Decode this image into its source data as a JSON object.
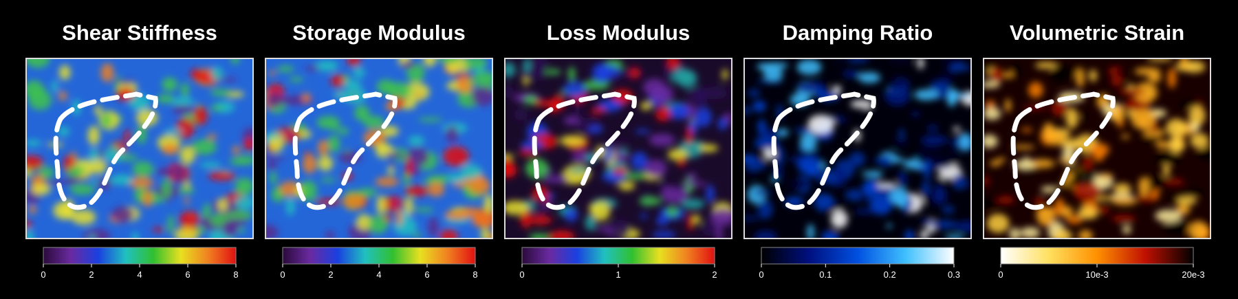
{
  "panels": [
    {
      "title": "Shear Stiffness",
      "colorbar": {
        "lim": [
          0,
          8
        ],
        "ticks": [
          0,
          2,
          4,
          6,
          8
        ],
        "colors": [
          "#2a0a3a",
          "#6a2aa0",
          "#1a40e0",
          "#20c0c0",
          "#30c030",
          "#e8e020",
          "#f08020",
          "#e01010"
        ]
      }
    },
    {
      "title": "Storage Modulus",
      "colorbar": {
        "lim": [
          0,
          8
        ],
        "ticks": [
          0,
          2,
          4,
          6,
          8
        ],
        "colors": [
          "#2a0a3a",
          "#6a2aa0",
          "#1a40e0",
          "#20c0c0",
          "#30c030",
          "#e8e020",
          "#f08020",
          "#e01010"
        ]
      }
    },
    {
      "title": "Loss Modulus",
      "colorbar": {
        "lim": [
          0,
          2
        ],
        "ticks": [
          0,
          1,
          2
        ],
        "colors": [
          "#2a0a3a",
          "#6a2aa0",
          "#1a40e0",
          "#20c0c0",
          "#30c030",
          "#e8e020",
          "#f08020",
          "#e01010"
        ]
      }
    },
    {
      "title": "Damping Ratio",
      "colorbar": {
        "lim": [
          0,
          0.3
        ],
        "ticks": [
          0,
          0.1,
          0.2,
          0.3
        ],
        "colors": [
          "#000000",
          "#001080",
          "#0050e0",
          "#40c0ff",
          "#ffffff"
        ]
      }
    },
    {
      "title": "Volumetric Strain",
      "colorbar": {
        "lim": [
          0,
          0.02
        ],
        "ticks": [
          0,
          {
            "value": 0.01,
            "label": "10e-3"
          },
          {
            "value": 0.02,
            "label": "20e-3"
          }
        ],
        "colors": [
          "#ffffff",
          "#ffe060",
          "#ff9000",
          "#c01000",
          "#000000"
        ]
      }
    }
  ]
}
